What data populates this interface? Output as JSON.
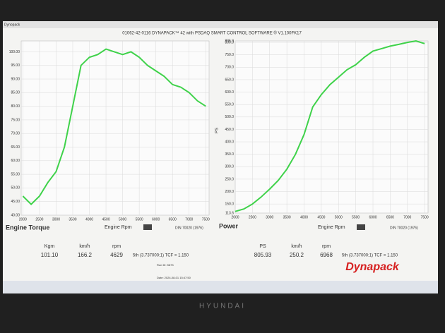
{
  "header": {
    "window_title": "Dynopack",
    "title": "01062-42-0116 DYNAPACK™ 42 with PSDAQ SMART CONTROL SOFTWARE ® V1.100FK17"
  },
  "chart_data": [
    {
      "type": "line",
      "title": "Engine Torque",
      "x_label": "Engine Rpm",
      "standard": "DIN 70020 (1976)",
      "x": [
        2000,
        2250,
        2500,
        2750,
        3000,
        3250,
        3500,
        3750,
        4000,
        4250,
        4500,
        4750,
        5000,
        5250,
        5500,
        5750,
        6000,
        6250,
        6500,
        6750,
        7000,
        7250,
        7500
      ],
      "color": "#3fd24a",
      "values": [
        47,
        44,
        47,
        52,
        56,
        65,
        80,
        95,
        98,
        99,
        101,
        100,
        99,
        100,
        98,
        95,
        93,
        91,
        88,
        87,
        85,
        82,
        80
      ],
      "xlim": [
        1950,
        7600
      ],
      "xticks": [
        2000,
        2500,
        3000,
        3500,
        4000,
        4500,
        5000,
        5500,
        6000,
        6500,
        7000,
        7500
      ],
      "ylim": [
        40,
        104
      ],
      "yticks": [
        {
          "value": 40,
          "label": "40.00"
        },
        {
          "value": 45,
          "label": "45.00"
        },
        {
          "value": 50,
          "label": "50.00"
        },
        {
          "value": 55,
          "label": "55.00"
        },
        {
          "value": 60,
          "label": "60.00"
        },
        {
          "value": 65,
          "label": "65.00"
        },
        {
          "value": 70,
          "label": "70.00"
        },
        {
          "value": 75,
          "label": "75.00"
        },
        {
          "value": 80,
          "label": "80.00"
        },
        {
          "value": 85,
          "label": "85.00"
        },
        {
          "value": 90,
          "label": "90.00"
        },
        {
          "value": 95,
          "label": "95.00"
        },
        {
          "value": 100,
          "label": "100.00"
        }
      ],
      "grid": true
    },
    {
      "type": "line",
      "title": "Power",
      "y_label": "PS",
      "x_label": "Engine Rpm",
      "standard": "DIN 70020 (1976)",
      "x": [
        2000,
        2250,
        2500,
        2750,
        3000,
        3250,
        3500,
        3750,
        4000,
        4250,
        4500,
        4750,
        5000,
        5250,
        5500,
        5750,
        6000,
        6250,
        6500,
        6750,
        7000,
        7250,
        7500
      ],
      "color": "#3fd24a",
      "values": [
        120,
        130,
        150,
        178,
        210,
        245,
        290,
        350,
        430,
        540,
        590,
        630,
        660,
        690,
        710,
        740,
        765,
        775,
        785,
        792,
        800,
        805.9,
        795
      ],
      "xlim": [
        2000,
        7600
      ],
      "xticks": [
        2000,
        2500,
        3000,
        3500,
        4000,
        4500,
        5000,
        5500,
        6000,
        6500,
        7000,
        7500
      ],
      "ylim": [
        113.6,
        805.9
      ],
      "yticks": [
        113.6,
        {
          "value": 150,
          "label": "150.0"
        },
        {
          "value": 200,
          "label": "200.0"
        },
        {
          "value": 250,
          "label": "250.0"
        },
        {
          "value": 300,
          "label": "300.0"
        },
        {
          "value": 350,
          "label": "350.0"
        },
        {
          "value": 400,
          "label": "400.0"
        },
        {
          "value": 450,
          "label": "450.0"
        },
        {
          "value": 500,
          "label": "500.0"
        },
        {
          "value": 550,
          "label": "550.0"
        },
        {
          "value": 600,
          "label": "600.0"
        },
        {
          "value": 650,
          "label": "650.0"
        },
        {
          "value": 700,
          "label": "700.0"
        },
        {
          "value": 750,
          "label": "750.0"
        },
        {
          "value": 800,
          "label": "800.0"
        },
        805.9
      ],
      "grid": true
    }
  ],
  "readouts": [
    {
      "labels": [
        "Kgm",
        "km/h",
        "rpm"
      ],
      "values": [
        "101.10",
        "166.2",
        "4629"
      ],
      "gear": "5th (3.737000:1) TCF = 1.150"
    },
    {
      "labels": [
        "PS",
        "km/h",
        "rpm"
      ],
      "values": [
        "805.93",
        "250.2",
        "6968"
      ],
      "gear": "5th (3.737000:1) TCF = 1.150"
    }
  ],
  "run_info": {
    "run_id": "Run ID: 5673",
    "date": "Date: 2024-08-01 15:47:50"
  },
  "logo": "Dynapack",
  "bezel_brand": "HYUNDAI"
}
